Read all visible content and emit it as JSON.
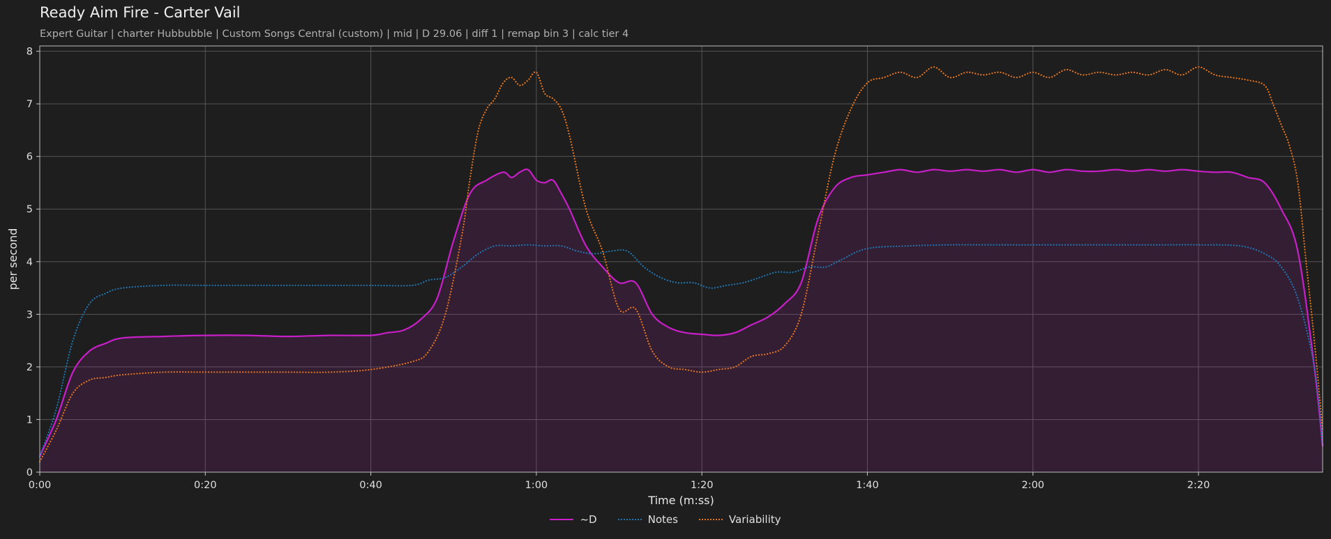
{
  "header": {
    "title": "Ready Aim Fire - Carter Vail",
    "subtitle": "Expert Guitar  |  charter Hubbubble  |  Custom Songs Central (custom)  |  mid  |  D 29.06  |  diff 1  |  remap bin 3  |  calc tier 4"
  },
  "chart_data": {
    "type": "line",
    "title": "Ready Aim Fire - Carter Vail",
    "xlabel": "Time (m:ss)",
    "ylabel": "per second",
    "xlim": [
      0,
      155
    ],
    "ylim": [
      0,
      8.1
    ],
    "grid": true,
    "legend_placement": "bottom-center",
    "x_ticks": [
      {
        "value": 0,
        "label": "0:00"
      },
      {
        "value": 20,
        "label": "0:20"
      },
      {
        "value": 40,
        "label": "0:40"
      },
      {
        "value": 60,
        "label": "1:00"
      },
      {
        "value": 80,
        "label": "1:20"
      },
      {
        "value": 100,
        "label": "1:40"
      },
      {
        "value": 120,
        "label": "2:00"
      },
      {
        "value": 140,
        "label": "2:20"
      }
    ],
    "y_ticks": [
      {
        "value": 0,
        "label": "0"
      },
      {
        "value": 1,
        "label": "1"
      },
      {
        "value": 2,
        "label": "2"
      },
      {
        "value": 3,
        "label": "3"
      },
      {
        "value": 4,
        "label": "4"
      },
      {
        "value": 5,
        "label": "5"
      },
      {
        "value": 6,
        "label": "6"
      },
      {
        "value": 7,
        "label": "7"
      },
      {
        "value": 8,
        "label": "8"
      }
    ],
    "series": [
      {
        "name": "~D",
        "color": "#c81fc8",
        "style": "solid",
        "filled": true,
        "x": [
          0,
          2,
          4,
          6,
          8,
          10,
          15,
          20,
          25,
          30,
          35,
          40,
          42,
          44,
          46,
          48,
          50,
          52,
          54,
          56,
          57,
          58,
          59,
          60,
          61,
          62,
          63,
          64,
          66,
          68,
          70,
          72,
          74,
          76,
          78,
          80,
          82,
          84,
          86,
          88,
          90,
          92,
          94,
          96,
          98,
          100,
          102,
          104,
          106,
          108,
          110,
          112,
          114,
          116,
          118,
          120,
          122,
          124,
          126,
          128,
          130,
          132,
          134,
          136,
          138,
          140,
          142,
          144,
          146,
          148,
          150,
          152,
          154,
          155
        ],
        "y": [
          0.3,
          1.0,
          1.9,
          2.3,
          2.45,
          2.55,
          2.58,
          2.6,
          2.6,
          2.58,
          2.6,
          2.6,
          2.65,
          2.7,
          2.9,
          3.3,
          4.4,
          5.3,
          5.55,
          5.7,
          5.6,
          5.7,
          5.75,
          5.55,
          5.5,
          5.55,
          5.3,
          5.0,
          4.3,
          3.9,
          3.6,
          3.6,
          3.0,
          2.75,
          2.65,
          2.62,
          2.6,
          2.65,
          2.8,
          2.95,
          3.2,
          3.6,
          4.8,
          5.4,
          5.6,
          5.65,
          5.7,
          5.75,
          5.7,
          5.75,
          5.72,
          5.75,
          5.72,
          5.75,
          5.7,
          5.75,
          5.7,
          5.75,
          5.72,
          5.72,
          5.75,
          5.72,
          5.75,
          5.72,
          5.75,
          5.72,
          5.7,
          5.7,
          5.6,
          5.5,
          5.0,
          4.2,
          2.0,
          0.5
        ]
      },
      {
        "name": "Notes",
        "color": "#1f77b4",
        "style": "dotted",
        "filled": false,
        "x": [
          0,
          2,
          4,
          6,
          8,
          10,
          15,
          20,
          25,
          30,
          35,
          40,
          45,
          47,
          49,
          51,
          53,
          55,
          57,
          59,
          61,
          63,
          65,
          67,
          69,
          71,
          73,
          75,
          77,
          79,
          81,
          83,
          85,
          87,
          89,
          91,
          93,
          95,
          97,
          100,
          105,
          110,
          115,
          120,
          125,
          130,
          135,
          140,
          145,
          148,
          150,
          152,
          154,
          155
        ],
        "y": [
          0.3,
          1.2,
          2.5,
          3.2,
          3.4,
          3.5,
          3.55,
          3.55,
          3.55,
          3.55,
          3.55,
          3.55,
          3.55,
          3.65,
          3.7,
          3.9,
          4.15,
          4.3,
          4.3,
          4.32,
          4.3,
          4.3,
          4.2,
          4.15,
          4.2,
          4.2,
          3.9,
          3.7,
          3.6,
          3.6,
          3.5,
          3.55,
          3.6,
          3.7,
          3.8,
          3.8,
          3.9,
          3.9,
          4.05,
          4.25,
          4.3,
          4.32,
          4.32,
          4.32,
          4.32,
          4.32,
          4.32,
          4.32,
          4.3,
          4.15,
          3.9,
          3.3,
          2.0,
          0.5
        ]
      },
      {
        "name": "Variability",
        "color": "#e8761e",
        "style": "dotted",
        "filled": false,
        "x": [
          0,
          2,
          4,
          6,
          8,
          10,
          15,
          20,
          25,
          30,
          35,
          40,
          45,
          47,
          49,
          51,
          52,
          53,
          54,
          55,
          56,
          57,
          58,
          59,
          60,
          61,
          62,
          63,
          64,
          66,
          68,
          70,
          72,
          74,
          76,
          78,
          80,
          82,
          84,
          86,
          88,
          90,
          92,
          94,
          96,
          98,
          100,
          102,
          104,
          106,
          108,
          110,
          112,
          114,
          116,
          118,
          120,
          122,
          124,
          126,
          128,
          130,
          132,
          134,
          136,
          138,
          140,
          142,
          144,
          146,
          148,
          149,
          150,
          151,
          152,
          153,
          154,
          155
        ],
        "y": [
          0.2,
          0.8,
          1.5,
          1.75,
          1.8,
          1.85,
          1.9,
          1.9,
          1.9,
          1.9,
          1.9,
          1.95,
          2.1,
          2.3,
          3.0,
          4.5,
          5.6,
          6.5,
          6.9,
          7.1,
          7.4,
          7.5,
          7.35,
          7.45,
          7.6,
          7.2,
          7.1,
          6.9,
          6.4,
          5.0,
          4.2,
          3.1,
          3.1,
          2.3,
          2.0,
          1.95,
          1.9,
          1.95,
          2.0,
          2.2,
          2.25,
          2.4,
          3.0,
          4.5,
          6.0,
          6.9,
          7.4,
          7.5,
          7.6,
          7.5,
          7.7,
          7.5,
          7.6,
          7.55,
          7.6,
          7.5,
          7.6,
          7.5,
          7.65,
          7.55,
          7.6,
          7.55,
          7.6,
          7.55,
          7.65,
          7.55,
          7.7,
          7.55,
          7.5,
          7.45,
          7.35,
          7.0,
          6.6,
          6.2,
          5.5,
          4.0,
          2.5,
          0.8
        ]
      }
    ]
  }
}
